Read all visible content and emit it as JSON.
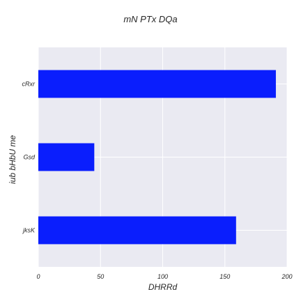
{
  "chart_data": {
    "type": "bar",
    "orientation": "horizontal",
    "title": "mN PTx DQa",
    "xlabel": "DHRRd",
    "ylabel": "iub bHbU   me",
    "categories": [
      "jksK",
      "Gsd",
      "cRxr"
    ],
    "values": [
      159,
      45,
      191
    ],
    "xlim": [
      0,
      200
    ],
    "xticks": [
      0,
      50,
      100,
      150,
      200
    ],
    "grid": true,
    "bar_color": "#0a1efd",
    "background_color": "#eaeaf2",
    "grid_color": "#ffffff"
  }
}
